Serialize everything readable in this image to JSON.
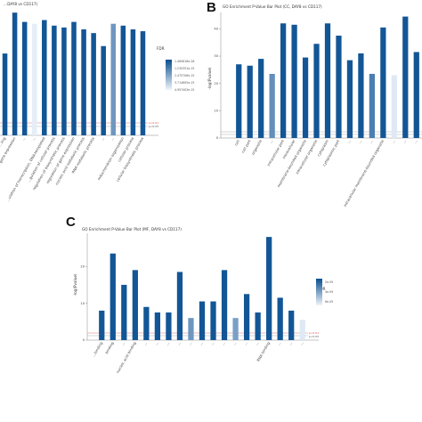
{
  "chart_data": [
    {
      "panel": "A",
      "panel_letter": "",
      "type": "bar",
      "title": "…DAY8 vs CD117)",
      "ylabel": "",
      "legend_title": "FDR",
      "legend_ticks": [
        "1.460816e-28",
        "1.230351e-15",
        "2.475706e-15",
        "3.714605e-15",
        "4.957403e-15"
      ],
      "ref_labels": [
        "p<0.01",
        "p<0.05"
      ],
      "values": [
        22,
        33,
        30.5,
        30,
        31,
        29.5,
        29,
        30.5,
        28.5,
        27.5,
        24,
        30,
        29.5,
        28.5,
        28
      ],
      "fdr_shade": [
        0.95,
        0.95,
        0.95,
        0.02,
        0.95,
        0.95,
        0.95,
        0.95,
        0.95,
        0.95,
        0.95,
        0.55,
        0.95,
        0.95,
        0.95
      ],
      "categories": [
        "…ling",
        "…ion of gene expression",
        "…",
        "…",
        "…ulation of transcription, DNA-templated",
        "…gulation of cellular process",
        "regulation of biosynthetic process",
        "regulation of gene expression",
        "nucleic acid metabolic process",
        "RNA metabolic process",
        "…",
        "…",
        "mitochondrion organization",
        "cellular process",
        "cellular biosynthetic process"
      ]
    },
    {
      "panel": "B",
      "panel_letter": "B",
      "type": "bar",
      "title": "GO Enrichment P-Value Bar Plot (CC, DAY8 vs CD117)",
      "ylabel": "-log(Pvalue)",
      "yticks": [
        0,
        10,
        20,
        30,
        40
      ],
      "ylim": [
        0,
        46
      ],
      "values": [
        27,
        26.5,
        29,
        23.5,
        42,
        41.5,
        29.5,
        34.5,
        42,
        37.5,
        28.5,
        31,
        23.5,
        40.5,
        23,
        44.5,
        31.5
      ],
      "fdr_shade": [
        0.95,
        0.95,
        0.95,
        0.6,
        0.95,
        0.95,
        0.95,
        0.95,
        0.95,
        0.95,
        0.95,
        0.95,
        0.7,
        0.95,
        0.05,
        0.95,
        0.95
      ],
      "categories": [
        "cell",
        "cell part",
        "organelle",
        "…",
        "intracellular part",
        "intracellular",
        "membrane-bounded organelle",
        "intracellular organelle",
        "cytoplasm",
        "cytoplasmic part",
        "…",
        "…",
        "…",
        "intracellular membrane-bounded organelle",
        "…",
        "…",
        "…"
      ]
    },
    {
      "panel": "C",
      "panel_letter": "C",
      "type": "bar",
      "title": "GO Enrichment P-Value Bar Plot (MF, DAY8 vs CD117)",
      "ylabel": "-log(Pvalue)",
      "yticks": [
        0,
        10,
        20
      ],
      "ylim": [
        0,
        29
      ],
      "legend_title": "FDR",
      "legend_ticks": [
        "2e-09",
        "4e-09",
        "6e-09"
      ],
      "ref_labels": [
        "p<0.01",
        "p<0.05"
      ],
      "values": [
        8,
        23.5,
        15,
        19,
        9,
        7.5,
        7.5,
        18.5,
        6,
        10.5,
        10.5,
        19,
        6,
        12.5,
        7.5,
        28,
        11.5,
        8,
        5.5
      ],
      "fdr_shade": [
        0.95,
        0.95,
        0.95,
        0.95,
        0.95,
        0.95,
        0.95,
        0.95,
        0.55,
        0.95,
        0.95,
        0.95,
        0.5,
        0.95,
        0.95,
        0.95,
        0.95,
        0.95,
        0.05
      ],
      "categories": [
        "…binding",
        "binding",
        "…",
        "nucleic acid binding",
        "…",
        "…",
        "…",
        "…",
        "…",
        "…",
        "…",
        "…",
        "…",
        "…",
        "…",
        "RNA binding",
        "…",
        "…",
        "…"
      ]
    }
  ]
}
